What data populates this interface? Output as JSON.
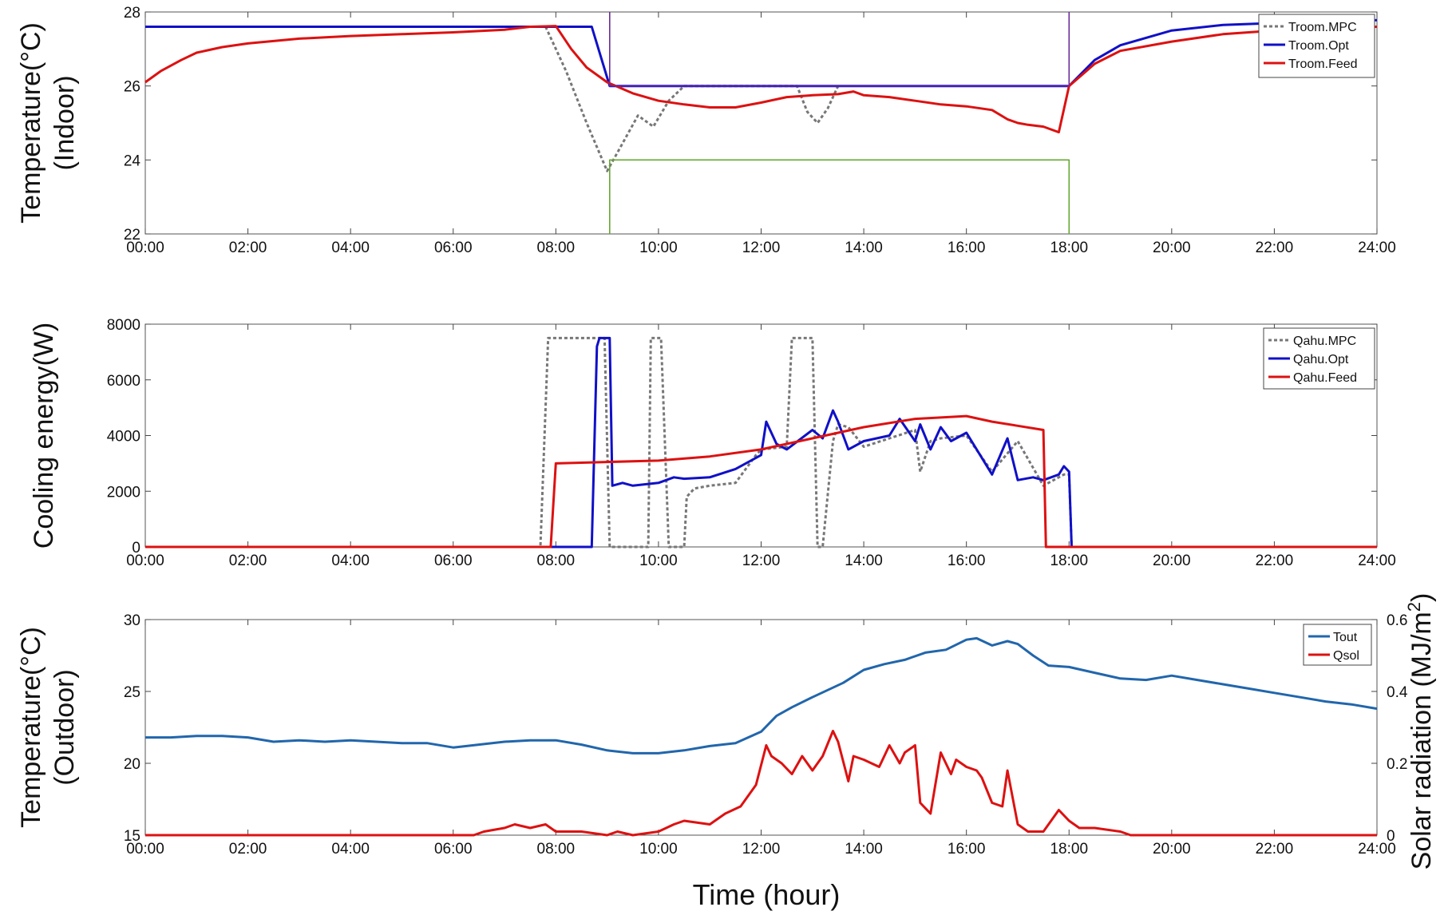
{
  "x_ticks": [
    "00:00",
    "02:00",
    "04:00",
    "06:00",
    "08:00",
    "10:00",
    "12:00",
    "14:00",
    "16:00",
    "18:00",
    "20:00",
    "22:00",
    "24:00"
  ],
  "xlabel": "Time (hour)",
  "colors": {
    "mpc": "#777777",
    "opt": "#1010c8",
    "feed": "#dd1111",
    "upper": "#6a2a9a",
    "lower": "#66a832",
    "tout": "#2166ac",
    "qsol": "#dd1111"
  },
  "chart_data": [
    {
      "type": "line",
      "ylabel_lines": [
        "Temperature(°C)",
        "(Indoor)"
      ],
      "ylim": [
        22,
        28
      ],
      "xlim": [
        0,
        24
      ],
      "yticks": [
        22,
        24,
        26,
        28
      ],
      "legend": "top-right",
      "series": [
        {
          "name": "Troom.MPC",
          "style": "dotted",
          "x": [
            7.8,
            8.2,
            8.6,
            9.0,
            9.2,
            9.6,
            9.9,
            10.2,
            10.5,
            10.6,
            12.7,
            12.9,
            13.1,
            13.3,
            13.5
          ],
          "y": [
            27.6,
            26.4,
            25.0,
            23.7,
            24.2,
            25.2,
            24.9,
            25.6,
            26.0,
            26.0,
            26.0,
            25.3,
            25.0,
            25.4,
            26.0
          ]
        },
        {
          "name": "Troom.Opt",
          "style": "solid",
          "x": [
            0,
            7.8,
            8.7,
            9.05,
            18.0,
            18.5,
            19,
            20,
            21,
            22,
            23,
            24
          ],
          "y": [
            27.6,
            27.6,
            27.6,
            26.0,
            26.0,
            26.7,
            27.1,
            27.5,
            27.65,
            27.7,
            27.75,
            27.78
          ]
        },
        {
          "name": "Troom.Feed",
          "style": "solid",
          "x": [
            0,
            0.3,
            0.7,
            1,
            1.5,
            2,
            3,
            4,
            5,
            6,
            7,
            7.5,
            8,
            8.3,
            8.6,
            9,
            9.5,
            10,
            10.5,
            11,
            11.5,
            12,
            12.5,
            13,
            13.5,
            13.8,
            14,
            14.5,
            15,
            15.5,
            16,
            16.5,
            16.8,
            17,
            17.2,
            17.5,
            17.8,
            18,
            18.5,
            19,
            20,
            21,
            22,
            23,
            24
          ],
          "y": [
            26.1,
            26.4,
            26.7,
            26.9,
            27.05,
            27.15,
            27.28,
            27.35,
            27.4,
            27.45,
            27.52,
            27.6,
            27.62,
            27.0,
            26.5,
            26.1,
            25.8,
            25.6,
            25.5,
            25.42,
            25.42,
            25.55,
            25.7,
            25.75,
            25.78,
            25.85,
            25.75,
            25.7,
            25.6,
            25.5,
            25.45,
            25.35,
            25.1,
            25.0,
            24.95,
            24.9,
            24.75,
            26.0,
            26.6,
            26.95,
            27.2,
            27.4,
            27.5,
            27.55,
            27.6
          ]
        },
        {
          "name": "",
          "style": "solid",
          "x": [
            9.05,
            9.05,
            18.0,
            18.0
          ],
          "y": [
            28,
            26.0,
            26.0,
            28
          ]
        },
        {
          "name": "",
          "style": "solid",
          "x": [
            9.05,
            9.05,
            18.0,
            18.0
          ],
          "y": [
            22,
            24.0,
            24.0,
            22
          ]
        }
      ]
    },
    {
      "type": "line",
      "ylabel_lines": [
        "Cooling energy(W)"
      ],
      "ylim": [
        0,
        8000
      ],
      "xlim": [
        0,
        24
      ],
      "yticks": [
        0,
        2000,
        4000,
        6000,
        8000
      ],
      "legend": "top-right",
      "series": [
        {
          "name": "Qahu.MPC",
          "style": "dotted",
          "x": [
            0,
            7.7,
            7.85,
            8.85,
            8.95,
            9.05,
            9.8,
            9.85,
            10.05,
            10.2,
            10.5,
            10.55,
            10.7,
            11,
            11.5,
            11.9,
            12,
            12.5,
            12.6,
            12.7,
            13.0,
            13.1,
            13.2,
            13.4,
            13.5,
            13.7,
            14,
            14.5,
            15,
            15.1,
            15.3,
            15.5,
            16,
            16.5,
            17,
            17.5,
            17.6,
            17.9,
            18.0,
            18.05,
            24
          ],
          "y": [
            0,
            0,
            7500,
            7500,
            7500,
            0,
            0,
            7500,
            7500,
            0,
            0,
            1800,
            2100,
            2200,
            2300,
            3300,
            3500,
            3600,
            7500,
            7500,
            7500,
            0,
            0,
            3800,
            4400,
            4300,
            3600,
            3900,
            4200,
            2700,
            3800,
            3900,
            4000,
            2700,
            3800,
            2200,
            2300,
            2600,
            2600,
            0,
            0
          ]
        },
        {
          "name": "Qahu.Opt",
          "style": "solid",
          "x": [
            0,
            8.7,
            8.8,
            8.85,
            9.05,
            9.1,
            9.3,
            9.5,
            10,
            10.3,
            10.5,
            11,
            11.5,
            12,
            12.1,
            12.3,
            12.5,
            13,
            13.2,
            13.4,
            13.5,
            13.7,
            14,
            14.5,
            14.7,
            15,
            15.1,
            15.3,
            15.5,
            15.7,
            16,
            16.5,
            16.8,
            17,
            17.3,
            17.5,
            17.8,
            17.9,
            18.0,
            18.05,
            24
          ],
          "y": [
            0,
            0,
            7200,
            7500,
            7500,
            2200,
            2300,
            2200,
            2300,
            2500,
            2450,
            2500,
            2800,
            3300,
            4500,
            3700,
            3500,
            4200,
            3900,
            4900,
            4500,
            3500,
            3800,
            4000,
            4600,
            3800,
            4400,
            3500,
            4300,
            3800,
            4100,
            2600,
            3900,
            2400,
            2500,
            2400,
            2600,
            2900,
            2700,
            0,
            0
          ]
        },
        {
          "name": "Qahu.Feed",
          "style": "solid",
          "x": [
            0,
            7.9,
            8.0,
            9,
            10,
            11,
            12,
            13,
            14,
            15,
            16,
            16.5,
            17,
            17.5,
            17.55,
            17.6,
            24
          ],
          "y": [
            0,
            0,
            3000,
            3050,
            3100,
            3250,
            3500,
            3900,
            4300,
            4600,
            4700,
            4500,
            4350,
            4200,
            0,
            0,
            0
          ]
        }
      ]
    },
    {
      "type": "line",
      "ylabel_lines": [
        "Temperature(°C)",
        "(Outdoor)"
      ],
      "ylabel_right": "Solar radiation (MJ/m",
      "ylabel_right_sup": "2",
      "ylabel_right_close": ")",
      "ylim": [
        15,
        30
      ],
      "ylim_right": [
        0,
        0.6
      ],
      "xlim": [
        0,
        24
      ],
      "yticks": [
        15,
        20,
        25,
        30
      ],
      "yticks_right": [
        "0",
        "0.2",
        "0.4",
        "0.6"
      ],
      "legend": "top-right",
      "series": [
        {
          "name": "Tout",
          "axis": "left",
          "style": "solid",
          "x": [
            0,
            0.5,
            1,
            1.5,
            2,
            2.5,
            3,
            3.5,
            4,
            4.5,
            5,
            5.5,
            6,
            6.5,
            7,
            7.5,
            8,
            8.5,
            9,
            9.5,
            10,
            10.5,
            11,
            11.5,
            12,
            12.3,
            12.6,
            13,
            13.3,
            13.6,
            14,
            14.4,
            14.8,
            15.2,
            15.6,
            16,
            16.2,
            16.5,
            16.8,
            17,
            17.3,
            17.6,
            18,
            18.5,
            19,
            19.5,
            20,
            20.5,
            21,
            21.5,
            22,
            22.5,
            23,
            23.5,
            24
          ],
          "y": [
            21.8,
            21.8,
            21.9,
            21.9,
            21.8,
            21.5,
            21.6,
            21.5,
            21.6,
            21.5,
            21.4,
            21.4,
            21.1,
            21.3,
            21.5,
            21.6,
            21.6,
            21.3,
            20.9,
            20.7,
            20.7,
            20.9,
            21.2,
            21.4,
            22.2,
            23.3,
            23.9,
            24.6,
            25.1,
            25.6,
            26.5,
            26.9,
            27.2,
            27.7,
            27.9,
            28.6,
            28.7,
            28.2,
            28.5,
            28.3,
            27.5,
            26.8,
            26.7,
            26.3,
            25.9,
            25.8,
            26.1,
            25.8,
            25.5,
            25.2,
            24.9,
            24.6,
            24.3,
            24.1,
            23.8
          ]
        },
        {
          "name": "Qsol",
          "axis": "right",
          "style": "solid",
          "x": [
            0,
            6.4,
            6.6,
            7,
            7.2,
            7.5,
            7.8,
            8,
            8.5,
            9,
            9.2,
            9.5,
            10,
            10.3,
            10.5,
            11,
            11.3,
            11.6,
            11.9,
            12.1,
            12.2,
            12.4,
            12.6,
            12.8,
            13,
            13.2,
            13.4,
            13.5,
            13.7,
            13.8,
            14,
            14.3,
            14.5,
            14.7,
            14.8,
            15,
            15.1,
            15.3,
            15.5,
            15.7,
            15.8,
            16,
            16.2,
            16.3,
            16.5,
            16.7,
            16.8,
            17,
            17.2,
            17.5,
            17.8,
            18,
            18.2,
            18.5,
            19,
            19.2,
            19.5,
            24
          ],
          "y": [
            0,
            0,
            0.01,
            0.02,
            0.03,
            0.02,
            0.03,
            0.01,
            0.01,
            0.0,
            0.01,
            0.0,
            0.01,
            0.03,
            0.04,
            0.03,
            0.06,
            0.08,
            0.14,
            0.25,
            0.22,
            0.2,
            0.17,
            0.22,
            0.18,
            0.22,
            0.29,
            0.26,
            0.15,
            0.22,
            0.21,
            0.19,
            0.25,
            0.2,
            0.23,
            0.25,
            0.09,
            0.06,
            0.23,
            0.17,
            0.21,
            0.19,
            0.18,
            0.16,
            0.09,
            0.08,
            0.18,
            0.03,
            0.01,
            0.01,
            0.07,
            0.04,
            0.02,
            0.02,
            0.01,
            0.0,
            0.0,
            0.0
          ]
        }
      ]
    }
  ]
}
